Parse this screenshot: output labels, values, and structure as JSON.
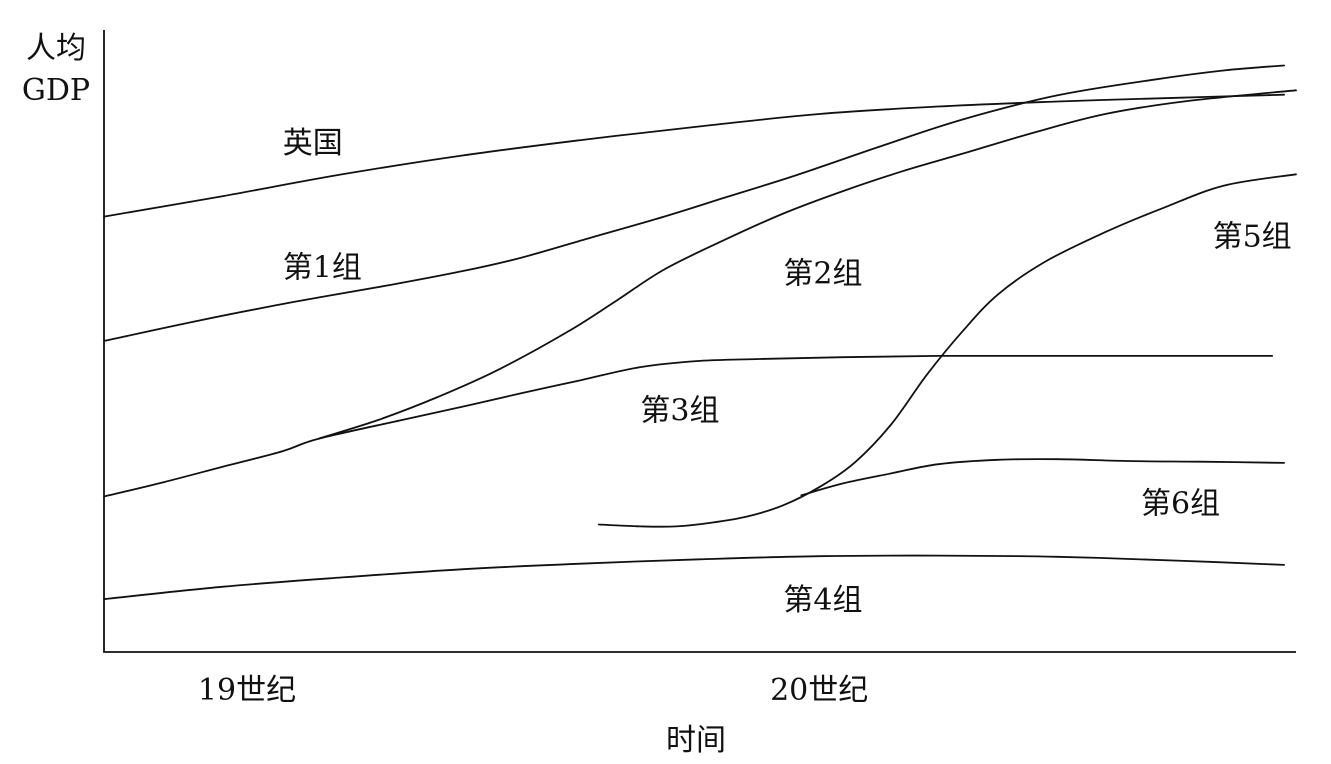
{
  "chart_data": {
    "type": "line",
    "title": "",
    "ylabel_lines": [
      "人均",
      "GDP"
    ],
    "xlabel": "时间",
    "xlim": [
      0,
      100
    ],
    "ylim": [
      0,
      100
    ],
    "grid": false,
    "x_ticks": [
      {
        "label": "19世纪",
        "x": 12
      },
      {
        "label": "20世纪",
        "x": 60
      }
    ],
    "series": [
      {
        "name": "英国",
        "label_at": [
          15,
          82
        ],
        "points": [
          [
            0,
            70
          ],
          [
            10,
            73.3
          ],
          [
            20,
            76.8
          ],
          [
            30,
            79.8
          ],
          [
            40,
            82.3
          ],
          [
            50,
            84.5
          ],
          [
            60,
            86.5
          ],
          [
            70,
            87.7
          ],
          [
            80,
            88.5
          ],
          [
            90,
            89.1
          ],
          [
            99,
            89.6
          ]
        ]
      },
      {
        "name": "第1组",
        "label_at": [
          15,
          62
        ],
        "points": [
          [
            0,
            50
          ],
          [
            8,
            53.3
          ],
          [
            16,
            56.3
          ],
          [
            24,
            59.0
          ],
          [
            30,
            61.2
          ],
          [
            35,
            63.4
          ],
          [
            41,
            66.7
          ],
          [
            47,
            70
          ],
          [
            52,
            73
          ],
          [
            58,
            76.6
          ],
          [
            65,
            81.2
          ],
          [
            72,
            85.6
          ],
          [
            80,
            89.5
          ],
          [
            88,
            92
          ],
          [
            94,
            93.5
          ],
          [
            99,
            94.3
          ]
        ]
      },
      {
        "name": "第2组",
        "label_at": [
          57,
          61
        ],
        "points": [
          [
            18,
            34.3
          ],
          [
            23,
            37.3
          ],
          [
            28,
            41
          ],
          [
            33,
            45.3
          ],
          [
            39,
            51.6
          ],
          [
            43,
            56.5
          ],
          [
            47,
            61.5
          ],
          [
            52,
            66.2
          ],
          [
            57,
            70.5
          ],
          [
            62,
            74.1
          ],
          [
            67,
            77.3
          ],
          [
            72,
            80.1
          ],
          [
            78,
            83.5
          ],
          [
            84,
            86.5
          ],
          [
            91,
            88.6
          ],
          [
            100,
            90.3
          ]
        ]
      },
      {
        "name": "第3组",
        "label_at": [
          45,
          39
        ],
        "points": [
          [
            0,
            25
          ],
          [
            5,
            27.3
          ],
          [
            10,
            29.8
          ],
          [
            15,
            32.3
          ],
          [
            18,
            34.3
          ],
          [
            25,
            37.3
          ],
          [
            30,
            39.4
          ],
          [
            35,
            41.6
          ],
          [
            40,
            43.7
          ],
          [
            45,
            45.8
          ],
          [
            50,
            46.8
          ],
          [
            55,
            47.1
          ],
          [
            62,
            47.4
          ],
          [
            70,
            47.6
          ],
          [
            80,
            47.6
          ],
          [
            90,
            47.6
          ],
          [
            98,
            47.6
          ]
        ]
      },
      {
        "name": "第4组",
        "label_at": [
          57,
          8.5
        ],
        "points": [
          [
            0,
            8.5
          ],
          [
            10,
            10.5
          ],
          [
            20,
            12
          ],
          [
            30,
            13.3
          ],
          [
            40,
            14.2
          ],
          [
            50,
            14.9
          ],
          [
            60,
            15.4
          ],
          [
            70,
            15.5
          ],
          [
            80,
            15.3
          ],
          [
            90,
            14.7
          ],
          [
            99,
            14
          ]
        ]
      },
      {
        "name": "第5组",
        "label_at": [
          93,
          67
        ],
        "points": [
          [
            41.5,
            20.5
          ],
          [
            45,
            20.2
          ],
          [
            48,
            20.2
          ],
          [
            51,
            20.8
          ],
          [
            54,
            21.8
          ],
          [
            57,
            23.6
          ],
          [
            60,
            26.5
          ],
          [
            63,
            30.5
          ],
          [
            66,
            36.5
          ],
          [
            69,
            44.5
          ],
          [
            72,
            51.5
          ],
          [
            75,
            57.5
          ],
          [
            79,
            62.8
          ],
          [
            84,
            67.5
          ],
          [
            89,
            71.5
          ],
          [
            94,
            75
          ],
          [
            100,
            76.8
          ]
        ]
      },
      {
        "name": "第6组",
        "label_at": [
          87,
          24
        ],
        "points": [
          [
            58.5,
            25.2
          ],
          [
            62,
            27.1
          ],
          [
            66,
            28.7
          ],
          [
            70,
            30.2
          ],
          [
            75,
            30.9
          ],
          [
            80,
            31
          ],
          [
            86,
            30.7
          ],
          [
            92,
            30.6
          ],
          [
            99,
            30.4
          ]
        ]
      }
    ]
  }
}
